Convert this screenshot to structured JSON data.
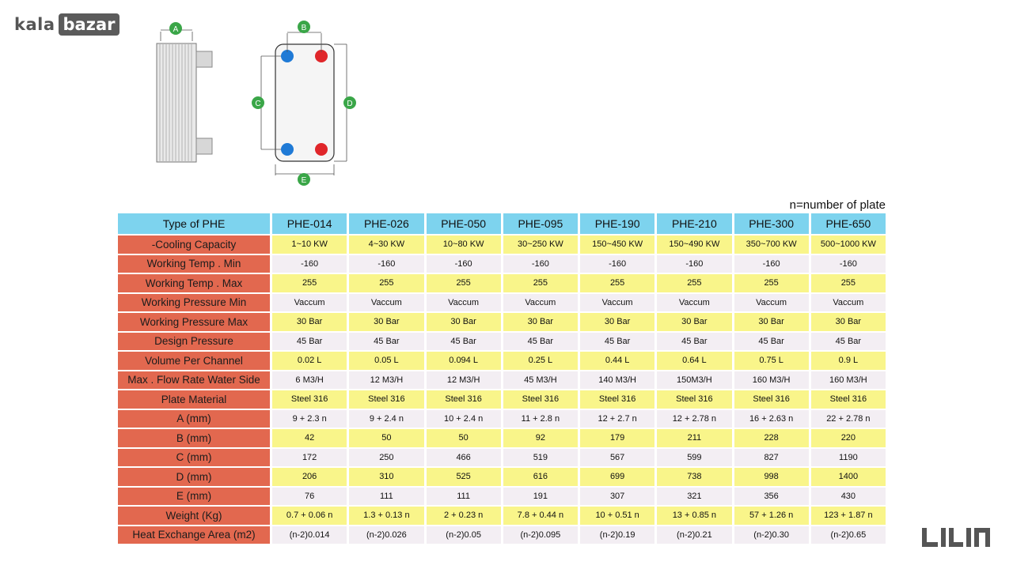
{
  "brand": {
    "kala": "kala",
    "bazar": "bazar"
  },
  "diagram": {
    "labels": [
      "A",
      "B",
      "C",
      "D",
      "E"
    ],
    "colors": {
      "green": "#3aa648",
      "blue": "#1f7ad6",
      "red": "#e0262a"
    }
  },
  "note": "n=number of plate",
  "table": {
    "header": [
      "Type of PHE",
      "PHE-014",
      "PHE-026",
      "PHE-050",
      "PHE-095",
      "PHE-190",
      "PHE-210",
      "PHE-300",
      "PHE-650"
    ],
    "rows": [
      {
        "label": "-Cooling Capacity",
        "values": [
          "1~10 KW",
          "4~30 KW",
          "10~80 KW",
          "30~250 KW",
          "150~450 KW",
          "150~490 KW",
          "350~700 KW",
          "500~1000 KW"
        ]
      },
      {
        "label": "Working Temp . Min",
        "values": [
          "-160",
          "-160",
          "-160",
          "-160",
          "-160",
          "-160",
          "-160",
          "-160"
        ]
      },
      {
        "label": "Working Temp . Max",
        "values": [
          "255",
          "255",
          "255",
          "255",
          "255",
          "255",
          "255",
          "255"
        ]
      },
      {
        "label": "Working Pressure Min",
        "values": [
          "Vaccum",
          "Vaccum",
          "Vaccum",
          "Vaccum",
          "Vaccum",
          "Vaccum",
          "Vaccum",
          "Vaccum"
        ]
      },
      {
        "label": "Working Pressure Max",
        "values": [
          "30 Bar",
          "30 Bar",
          "30 Bar",
          "30 Bar",
          "30 Bar",
          "30 Bar",
          "30 Bar",
          "30 Bar"
        ]
      },
      {
        "label": "Design Pressure",
        "values": [
          "45 Bar",
          "45 Bar",
          "45 Bar",
          "45 Bar",
          "45 Bar",
          "45 Bar",
          "45 Bar",
          "45 Bar"
        ]
      },
      {
        "label": "Volume Per Channel",
        "values": [
          "0.02 L",
          "0.05 L",
          "0.094 L",
          "0.25 L",
          "0.44 L",
          "0.64 L",
          "0.75 L",
          "0.9 L"
        ]
      },
      {
        "label": "Max . Flow Rate Water Side",
        "values": [
          "6 M3/H",
          "12 M3/H",
          "12 M3/H",
          "45 M3/H",
          "140 M3/H",
          "150M3/H",
          "160 M3/H",
          "160 M3/H"
        ]
      },
      {
        "label": "Plate Material",
        "values": [
          "Steel 316",
          "Steel 316",
          "Steel 316",
          "Steel 316",
          "Steel 316",
          "Steel 316",
          "Steel 316",
          "Steel 316"
        ]
      },
      {
        "label": "A  (mm)",
        "values": [
          "9 + 2.3 n",
          "9 + 2.4 n",
          "10 + 2.4 n",
          "11 + 2.8 n",
          "12 + 2.7 n",
          "12 + 2.78 n",
          "16 + 2.63 n",
          "22 + 2.78 n"
        ]
      },
      {
        "label": "B  (mm)",
        "values": [
          "42",
          "50",
          "50",
          "92",
          "179",
          "211",
          "228",
          "220"
        ]
      },
      {
        "label": "C  (mm)",
        "values": [
          "172",
          "250",
          "466",
          "519",
          "567",
          "599",
          "827",
          "1190"
        ]
      },
      {
        "label": "D  (mm)",
        "values": [
          "206",
          "310",
          "525",
          "616",
          "699",
          "738",
          "998",
          "1400"
        ]
      },
      {
        "label": "E  (mm)",
        "values": [
          "76",
          "111",
          "111",
          "191",
          "307",
          "321",
          "356",
          "430"
        ]
      },
      {
        "label": "Weight  (Kg)",
        "values": [
          "0.7 + 0.06  n",
          "1.3 + 0.13  n",
          "2 + 0.23  n",
          "7.8 + 0.44  n",
          "10 + 0.51  n",
          "13 + 0.85  n",
          "57 + 1.26  n",
          "123 + 1.87  n"
        ]
      },
      {
        "label": "Heat Exchange Area  (m2)",
        "values": [
          "(n-2)0.014",
          "(n-2)0.026",
          "(n-2)0.05",
          "(n-2)0.095",
          "(n-2)0.19",
          "(n-2)0.21",
          "(n-2)0.30",
          "(n-2)0.65"
        ]
      }
    ]
  },
  "footer_logo": "کالا بازار"
}
